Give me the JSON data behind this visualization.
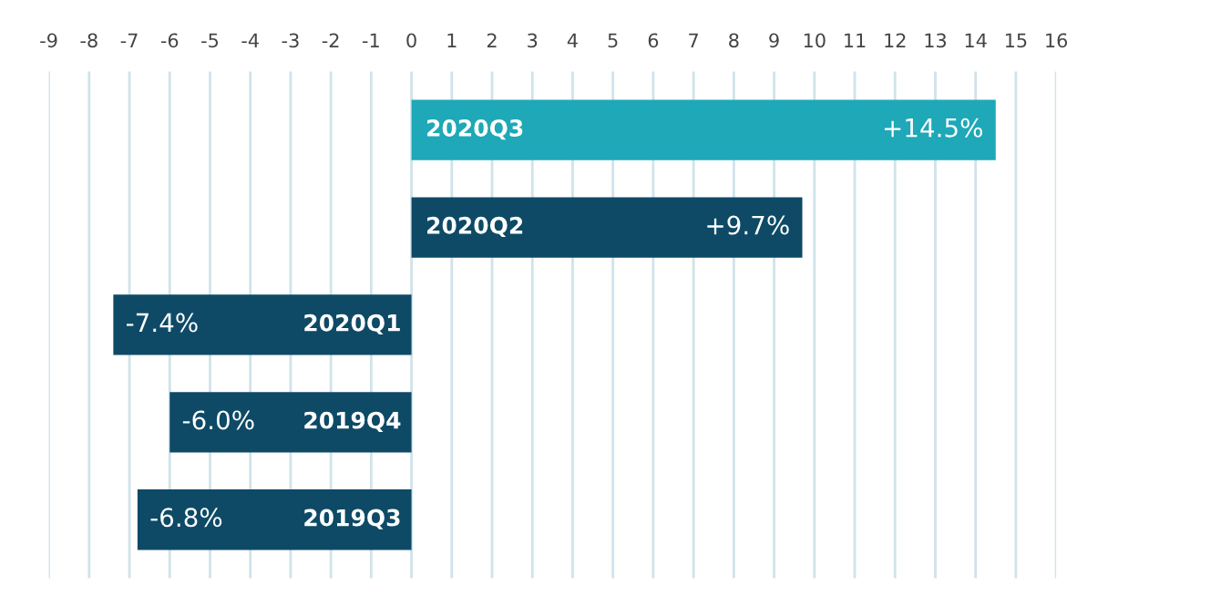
{
  "chart_data": {
    "type": "bar",
    "orientation": "horizontal",
    "categories": [
      "2020Q3",
      "2020Q2",
      "2020Q1",
      "2019Q4",
      "2019Q3"
    ],
    "values": [
      14.5,
      9.7,
      -7.4,
      -6.0,
      -6.8
    ],
    "colors": [
      "#1ea8b8",
      "#0e4a66",
      "#0e4a66",
      "#0e4a66",
      "#0e4a66"
    ],
    "value_labels": [
      "+14.5%",
      "+9.7%",
      "-7.4%",
      "-6.0%",
      "-6.8%"
    ],
    "xlim": [
      -9,
      16
    ],
    "xticks": [
      -9,
      -8,
      -7,
      -6,
      -5,
      -4,
      -3,
      -2,
      -1,
      0,
      1,
      2,
      3,
      4,
      5,
      6,
      7,
      8,
      9,
      10,
      11,
      12,
      13,
      14,
      15,
      16
    ],
    "grid": "x"
  }
}
